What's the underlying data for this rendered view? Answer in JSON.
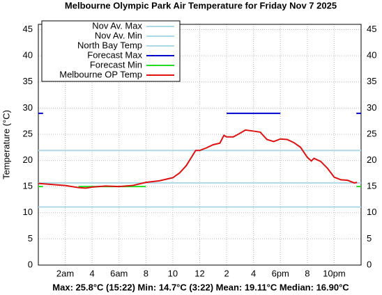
{
  "chart_data": {
    "type": "line",
    "title": "Melbourne Olympic Park Air Temperature  for Friday Nov 7 2025",
    "ylabel": "Temperature (°C)",
    "footer": "Max: 25.8°C (15:22) Min: 14.7°C (3:22) Mean: 19.11°C Median: 16.90°C",
    "xlim": [
      0,
      24
    ],
    "ylim": [
      0,
      46
    ],
    "yticks": [
      0,
      5,
      10,
      15,
      20,
      25,
      30,
      35,
      40,
      45
    ],
    "xticks": [
      {
        "value": 2,
        "label": "2am"
      },
      4,
      {
        "value": 6,
        "label": "6am"
      },
      8,
      10,
      12,
      {
        "value": 14,
        "label": "2"
      },
      {
        "value": 16,
        "label": "4"
      },
      {
        "value": 18,
        "label": "6pm"
      },
      {
        "value": 20,
        "label": "8"
      },
      {
        "value": 22,
        "label": "10pm"
      }
    ],
    "grid": true,
    "legend": "upper left",
    "series": [
      {
        "name": "Nov Av. Max",
        "color": "#add8e6",
        "x": [
          0,
          24
        ],
        "values": [
          21.9,
          21.9
        ]
      },
      {
        "name": "Nov Av. Min",
        "color": "#add8e6",
        "x": [
          0,
          24
        ],
        "values": [
          11.1,
          11.1
        ]
      },
      {
        "name": "North Bay Temp",
        "color": "#add8e6",
        "x": [
          0,
          24
        ],
        "values": [
          15.7,
          15.7
        ]
      },
      {
        "name": "Forecast Max",
        "color": "#0000cc",
        "x": [
          0,
          0.35,
          7,
          14,
          18,
          21,
          23.65,
          24
        ],
        "values": [
          29,
          29,
          null,
          29,
          29,
          null,
          29,
          29
        ]
      },
      {
        "name": "Forecast Min",
        "color": "#22dd22",
        "x": [
          0,
          0.35,
          1.5,
          3,
          8,
          16,
          23.65,
          24
        ],
        "values": [
          15,
          15,
          null,
          15,
          15,
          null,
          15,
          15
        ]
      },
      {
        "name": "Melbourne OP Temp",
        "color": "#dd1111",
        "x": [
          0,
          1,
          2,
          3,
          3.5,
          4,
          5,
          6,
          7,
          8,
          9,
          10,
          10.5,
          11,
          11.7,
          12,
          12.5,
          13,
          13.5,
          13.8,
          14,
          14.5,
          15,
          15.4,
          16,
          16.5,
          17,
          17.5,
          18,
          18.5,
          19,
          19.5,
          20,
          20.3,
          20.5,
          21,
          21.5,
          22,
          22.5,
          23,
          23.5,
          23.7
        ],
        "values": [
          15.6,
          15.4,
          15.2,
          14.8,
          14.7,
          14.9,
          15.1,
          15.0,
          15.2,
          15.8,
          16.1,
          16.7,
          17.6,
          19.0,
          21.9,
          21.9,
          22.4,
          23.0,
          23.3,
          24.8,
          24.5,
          24.5,
          25.2,
          25.8,
          25.6,
          25.4,
          24.0,
          23.6,
          24.1,
          24.0,
          23.4,
          22.5,
          20.6,
          19.9,
          20.4,
          19.8,
          18.5,
          16.8,
          16.3,
          16.2,
          15.7,
          15.8
        ]
      }
    ]
  }
}
